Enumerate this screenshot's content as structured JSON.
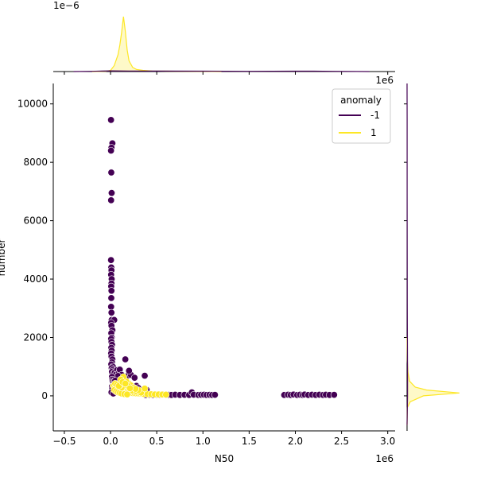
{
  "chart_data": {
    "type": "scatter",
    "xlabel": "N50",
    "ylabel": "number",
    "x_offset_text": "1e6",
    "y_top_margin_offset_text": "1e−6",
    "x_top_margin_offset_text": "1e6",
    "xlim": [
      -0.62,
      3.08
    ],
    "ylim": [
      -1200,
      10700
    ],
    "x_ticks": [
      -0.5,
      0.0,
      0.5,
      1.0,
      1.5,
      2.0,
      2.5,
      3.0
    ],
    "x_tick_labels": [
      "−0.5",
      "0.0",
      "0.5",
      "1.0",
      "1.5",
      "2.0",
      "2.5",
      "3.0"
    ],
    "y_ticks": [
      0,
      2000,
      4000,
      6000,
      8000,
      10000
    ],
    "y_tick_labels": [
      "0",
      "2000",
      "4000",
      "6000",
      "8000",
      "10000"
    ],
    "grid": false,
    "legend": {
      "title": "anomaly",
      "placement": "top-right",
      "entries": [
        {
          "label": "-1",
          "color": "#440154"
        },
        {
          "label": "1",
          "color": "#fde725"
        }
      ]
    },
    "series": [
      {
        "name": "-1",
        "color": "#440154",
        "points": [
          [
            0.005,
            9450
          ],
          [
            0.02,
            8650
          ],
          [
            0.01,
            8500
          ],
          [
            0.005,
            8400
          ],
          [
            0.008,
            7650
          ],
          [
            0.012,
            6950
          ],
          [
            0.006,
            6700
          ],
          [
            0.005,
            4650
          ],
          [
            0.008,
            4400
          ],
          [
            0.01,
            4300
          ],
          [
            0.006,
            4150
          ],
          [
            0.012,
            4000
          ],
          [
            0.01,
            3850
          ],
          [
            0.007,
            3750
          ],
          [
            0.01,
            3600
          ],
          [
            0.008,
            3350
          ],
          [
            0.006,
            3050
          ],
          [
            0.01,
            2850
          ],
          [
            0.012,
            2600
          ],
          [
            0.04,
            2600
          ],
          [
            0.006,
            2500
          ],
          [
            0.01,
            2400
          ],
          [
            0.02,
            2250
          ],
          [
            0.008,
            2150
          ],
          [
            0.012,
            2000
          ],
          [
            0.006,
            1950
          ],
          [
            0.01,
            1850
          ],
          [
            0.016,
            1750
          ],
          [
            0.008,
            1650
          ],
          [
            0.012,
            1550
          ],
          [
            0.006,
            1450
          ],
          [
            0.01,
            1350
          ],
          [
            0.02,
            1250
          ],
          [
            0.016,
            1150
          ],
          [
            0.008,
            1080
          ],
          [
            0.025,
            1000
          ],
          [
            0.012,
            950
          ],
          [
            0.02,
            880
          ],
          [
            0.015,
            820
          ],
          [
            0.03,
            760
          ],
          [
            0.05,
            820
          ],
          [
            0.07,
            880
          ],
          [
            0.06,
            730
          ],
          [
            0.09,
            780
          ],
          [
            0.1,
            900
          ],
          [
            0.12,
            720
          ],
          [
            0.13,
            600
          ],
          [
            0.08,
            680
          ],
          [
            0.015,
            650
          ],
          [
            0.018,
            560
          ],
          [
            0.02,
            500
          ],
          [
            0.025,
            460
          ],
          [
            0.03,
            420
          ],
          [
            0.04,
            380
          ],
          [
            0.05,
            520
          ],
          [
            0.11,
            500
          ],
          [
            0.15,
            640
          ],
          [
            0.17,
            520
          ],
          [
            0.19,
            700
          ],
          [
            0.22,
            720
          ],
          [
            0.16,
            1250
          ],
          [
            0.2,
            860
          ],
          [
            0.26,
            620
          ],
          [
            0.28,
            340
          ],
          [
            0.3,
            270
          ],
          [
            0.37,
            690
          ],
          [
            0.39,
            210
          ],
          [
            0.015,
            320
          ],
          [
            0.02,
            250
          ],
          [
            0.04,
            220
          ],
          [
            0.06,
            300
          ],
          [
            0.01,
            120
          ],
          [
            0.03,
            80
          ],
          [
            0.38,
            30
          ],
          [
            0.42,
            40
          ],
          [
            0.46,
            30
          ],
          [
            0.5,
            40
          ],
          [
            0.53,
            30
          ],
          [
            0.56,
            35
          ],
          [
            0.6,
            30
          ],
          [
            0.63,
            35
          ],
          [
            0.66,
            30
          ],
          [
            0.7,
            40
          ],
          [
            0.75,
            30
          ],
          [
            0.8,
            35
          ],
          [
            0.85,
            30
          ],
          [
            0.88,
            120
          ],
          [
            0.9,
            40
          ],
          [
            0.95,
            30
          ],
          [
            0.98,
            35
          ],
          [
            1.01,
            40
          ],
          [
            1.04,
            30
          ],
          [
            1.07,
            35
          ],
          [
            1.1,
            30
          ],
          [
            1.13,
            35
          ],
          [
            1.88,
            30
          ],
          [
            1.92,
            40
          ],
          [
            1.95,
            30
          ],
          [
            1.98,
            45
          ],
          [
            2.02,
            30
          ],
          [
            2.05,
            40
          ],
          [
            2.08,
            30
          ],
          [
            2.1,
            45
          ],
          [
            2.14,
            30
          ],
          [
            2.18,
            40
          ],
          [
            2.22,
            30
          ],
          [
            2.26,
            40
          ],
          [
            2.3,
            30
          ],
          [
            2.33,
            40
          ],
          [
            2.37,
            30
          ],
          [
            2.42,
            35
          ]
        ]
      },
      {
        "name": "1",
        "color": "#fde725",
        "points": [
          [
            0.03,
            350
          ],
          [
            0.05,
            300
          ],
          [
            0.07,
            260
          ],
          [
            0.09,
            220
          ],
          [
            0.1,
            190
          ],
          [
            0.12,
            170
          ],
          [
            0.14,
            150
          ],
          [
            0.16,
            140
          ],
          [
            0.18,
            120
          ],
          [
            0.2,
            110
          ],
          [
            0.22,
            100
          ],
          [
            0.24,
            95
          ],
          [
            0.26,
            90
          ],
          [
            0.28,
            85
          ],
          [
            0.3,
            80
          ],
          [
            0.32,
            75
          ],
          [
            0.34,
            70
          ],
          [
            0.36,
            65
          ],
          [
            0.4,
            60
          ],
          [
            0.44,
            55
          ],
          [
            0.48,
            50
          ],
          [
            0.52,
            48
          ],
          [
            0.56,
            45
          ],
          [
            0.6,
            42
          ],
          [
            0.04,
            200
          ],
          [
            0.06,
            150
          ],
          [
            0.08,
            120
          ],
          [
            0.1,
            100
          ],
          [
            0.12,
            80
          ],
          [
            0.15,
            60
          ],
          [
            0.18,
            50
          ],
          [
            0.2,
            420
          ],
          [
            0.22,
            360
          ],
          [
            0.25,
            280
          ],
          [
            0.17,
            500
          ],
          [
            0.14,
            650
          ],
          [
            0.12,
            280
          ],
          [
            0.1,
            360
          ],
          [
            0.24,
            180
          ],
          [
            0.28,
            160
          ],
          [
            0.33,
            110
          ],
          [
            0.37,
            250
          ],
          [
            0.3,
            200
          ],
          [
            0.27,
            240
          ],
          [
            0.19,
            330
          ],
          [
            0.05,
            420
          ],
          [
            0.07,
            380
          ],
          [
            0.09,
            340
          ],
          [
            0.11,
            560
          ],
          [
            0.13,
            470
          ],
          [
            0.16,
            420
          ],
          [
            0.21,
            260
          ]
        ]
      }
    ],
    "marginal_x_density": {
      "series": [
        {
          "name": "1",
          "color": "#fde725",
          "x": [
            -0.2,
            -0.05,
            0.0,
            0.04,
            0.08,
            0.1,
            0.12,
            0.14,
            0.16,
            0.18,
            0.2,
            0.24,
            0.28,
            0.35,
            0.45,
            0.6,
            0.8,
            1.0,
            1.2
          ],
          "y": [
            0,
            0.02,
            0.1,
            0.5,
            1.4,
            2.2,
            3.3,
            4.6,
            3.4,
            1.8,
            0.9,
            0.35,
            0.18,
            0.1,
            0.05,
            0.03,
            0.02,
            0.01,
            0
          ]
        },
        {
          "name": "-1",
          "color": "#440154",
          "x": [
            -0.4,
            -0.2,
            0.0,
            0.2,
            0.5,
            1.0,
            1.5,
            2.0,
            2.2,
            2.4,
            2.8
          ],
          "y": [
            0,
            0.02,
            0.06,
            0.05,
            0.04,
            0.03,
            0.02,
            0.03,
            0.03,
            0.02,
            0
          ]
        }
      ],
      "ymax": 5.0
    },
    "marginal_y_density": {
      "series": [
        {
          "name": "1",
          "color": "#fde725",
          "y": [
            -1000,
            -400,
            -200,
            0,
            100,
            200,
            300,
            500,
            800,
            1200,
            2000
          ],
          "density": [
            0,
            0.01,
            0.1,
            0.5,
            1.6,
            0.6,
            0.25,
            0.08,
            0.03,
            0.01,
            0
          ]
        },
        {
          "name": "-1",
          "color": "#440154",
          "y": [
            -1000,
            0,
            500,
            1500,
            3000,
            5000,
            7000,
            9500,
            10700
          ],
          "density": [
            0,
            0.015,
            0.015,
            0.012,
            0.008,
            0.005,
            0.003,
            0.002,
            0
          ]
        }
      ],
      "xmax": 1.7
    }
  }
}
